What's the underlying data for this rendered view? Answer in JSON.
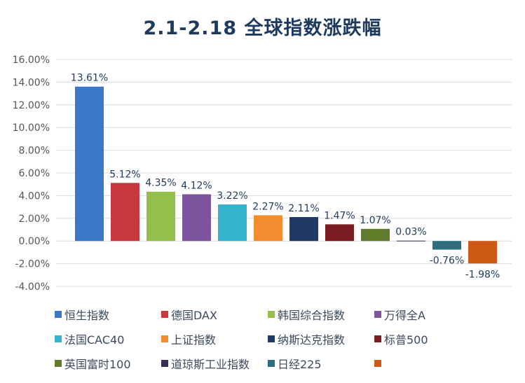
{
  "title": "2.1-2.18 全球指数涨跌幅",
  "chart_data": {
    "type": "bar",
    "title": "2.1-2.18 全球指数涨跌幅",
    "ylim": [
      -4,
      16
    ],
    "yticks": [
      "16.00%",
      "14.00%",
      "12.00%",
      "10.00%",
      "8.00%",
      "6.00%",
      "4.00%",
      "2.00%",
      "0.00%",
      "-2.00%",
      "-4.00%"
    ],
    "ytick_values": [
      16,
      14,
      12,
      10,
      8,
      6,
      4,
      2,
      0,
      -2,
      -4
    ],
    "grid": true,
    "legend_position": "bottom",
    "categories": [
      "恒生指数",
      "德国DAX",
      "韩国综合指数",
      "万得全A",
      "法国CAC40",
      "上证指数",
      "纳斯达克指数",
      "标普500",
      "英国富时100",
      "道琼斯工业指数",
      "日经225",
      ""
    ],
    "values": [
      13.61,
      5.12,
      4.35,
      4.12,
      3.22,
      2.27,
      2.11,
      1.47,
      1.07,
      0.03,
      -0.76,
      -1.98
    ],
    "data_labels": [
      "13.61%",
      "5.12%",
      "4.35%",
      "4.12%",
      "3.22%",
      "2.27%",
      "2.11%",
      "1.47%",
      "1.07%",
      "0.03%",
      "-0.76%",
      "-1.98%"
    ],
    "colors": [
      "#3b78c8",
      "#c6393c",
      "#93c04a",
      "#7d559e",
      "#35b3cc",
      "#f08d2e",
      "#1f3a64",
      "#7a1e22",
      "#5e7c2a",
      "#3a2c57",
      "#2f6d80",
      "#cf5a16"
    ]
  }
}
